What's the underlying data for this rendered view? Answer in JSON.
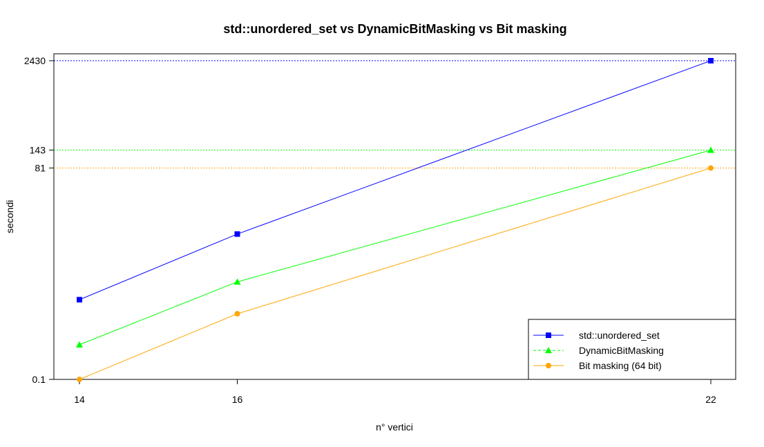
{
  "chart_data": {
    "type": "line",
    "title": "std::unordered_set vs DynamicBitMasking vs Bit masking",
    "xlabel": "n° vertici",
    "ylabel": "secondi",
    "x": [
      14,
      16,
      22
    ],
    "x_ticks": [
      "14",
      "16",
      "22"
    ],
    "y_scale": "log",
    "y_ticks": [
      "0.1",
      "81",
      "143",
      "2430"
    ],
    "ylim": [
      0.1,
      2430
    ],
    "grid": false,
    "legend_position": "bottom-right",
    "series": [
      {
        "name": "std::unordered_set",
        "values": [
          1.25,
          10.0,
          2430
        ],
        "color": "#0000ff",
        "marker": "square",
        "line": "solid"
      },
      {
        "name": "DynamicBitMasking",
        "values": [
          0.3,
          2.2,
          143
        ],
        "color": "#00ff00",
        "marker": "triangle",
        "line": "dashed"
      },
      {
        "name": "Bit masking (64 bit)",
        "values": [
          0.1,
          0.8,
          81
        ],
        "color": "#ffa500",
        "marker": "circle",
        "line": "solid"
      }
    ],
    "reference_lines": [
      {
        "y": 2430,
        "color": "#0000ff",
        "style": "dotted"
      },
      {
        "y": 143,
        "color": "#00ff00",
        "style": "dotted"
      },
      {
        "y": 81,
        "color": "#ffa500",
        "style": "dotted"
      }
    ]
  }
}
